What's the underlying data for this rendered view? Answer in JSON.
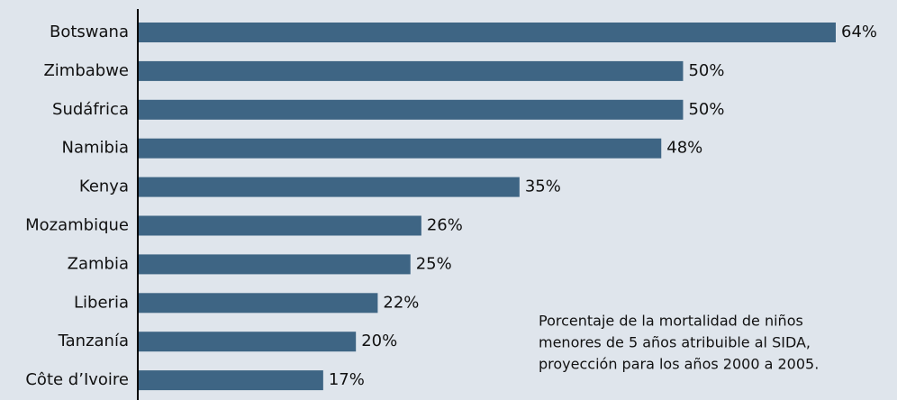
{
  "chart_data": {
    "type": "barh",
    "categories": [
      "Botswana",
      "Zimbabwe",
      "Sudáfrica",
      "Namibia",
      "Kenya",
      "Mozambique",
      "Zambia",
      "Liberia",
      "Tanzanía",
      "Côte d’Ivoire"
    ],
    "values": [
      64,
      50,
      50,
      48,
      35,
      26,
      25,
      22,
      20,
      17
    ],
    "value_labels": [
      "64%",
      "50%",
      "50%",
      "48%",
      "35%",
      "26%",
      "25%",
      "22%",
      "20%",
      "17%"
    ],
    "color": "#3e6584",
    "annotation": [
      "Porcentaje de la mortalidad de niños",
      "menores de 5 años atribuible al SIDA,",
      "proyección para los años 2000 a 2005."
    ]
  }
}
